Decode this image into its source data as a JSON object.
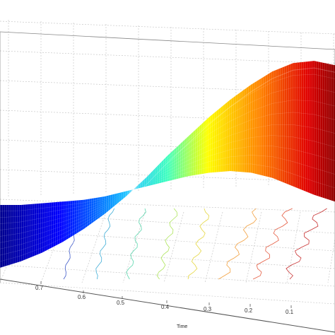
{
  "chart_data": {
    "type": "surface",
    "title": "",
    "xlabel": "Time",
    "ylabel": "",
    "zlabel": "",
    "x_ticks": [
      "0.7",
      "0.6",
      "0.5",
      "0.4",
      "0.3",
      "0.2",
      "0.1"
    ],
    "x_range": [
      0.0,
      0.8
    ],
    "z_range": [
      0,
      1
    ],
    "grid": true,
    "colormap": "jet",
    "colors": {
      "low": "#00008f",
      "mid_low": "#00bfff",
      "mid": "#ffff00",
      "mid_high": "#ff8000",
      "high": "#8f0000",
      "grid": "#c8c8c8",
      "axis": "#888888"
    },
    "surface_profile": {
      "x": [
        0.8,
        0.75,
        0.7,
        0.65,
        0.6,
        0.55,
        0.5,
        0.45,
        0.4,
        0.35,
        0.3,
        0.25,
        0.2,
        0.15,
        0.1,
        0.05,
        0.0
      ],
      "z_front": [
        0.02,
        0.05,
        0.09,
        0.14,
        0.2,
        0.27,
        0.35,
        0.44,
        0.54,
        0.63,
        0.72,
        0.8,
        0.87,
        0.93,
        0.97,
        0.98,
        0.96
      ],
      "z_back": [
        0.0,
        0.0,
        0.01,
        0.02,
        0.03,
        0.05,
        0.08,
        0.11,
        0.14,
        0.17,
        0.19,
        0.2,
        0.19,
        0.16,
        0.11,
        0.06,
        0.02
      ]
    }
  }
}
